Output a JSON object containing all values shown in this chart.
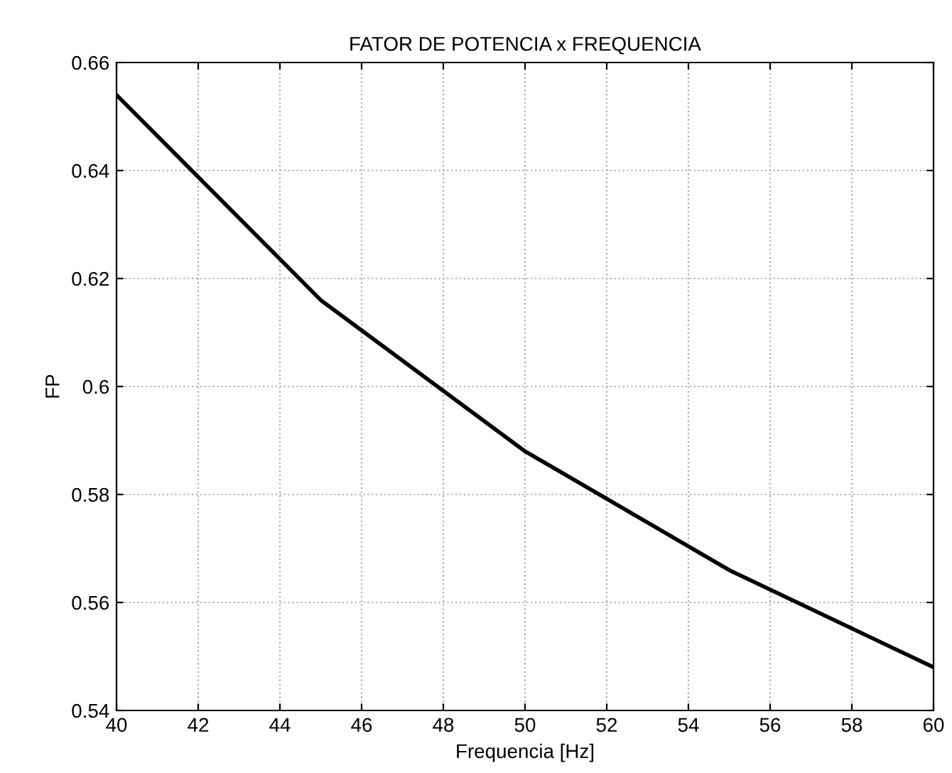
{
  "chart_data": {
    "type": "line",
    "title": "FATOR DE POTENCIA x FREQUENCIA",
    "xlabel": "Frequencia [Hz]",
    "ylabel": "FP",
    "x": [
      40,
      45,
      50,
      55,
      60
    ],
    "series": [
      {
        "color": "#000000",
        "values": [
          0.654,
          0.616,
          0.588,
          0.566,
          0.548
        ]
      }
    ],
    "xlim": [
      40,
      60
    ],
    "xticks": [
      40,
      42,
      44,
      46,
      48,
      50,
      52,
      54,
      56,
      58,
      60
    ],
    "ylim": [
      0.54,
      0.66
    ],
    "yticks": [
      0.54,
      0.56,
      0.58,
      0.6,
      0.62,
      0.64,
      0.66
    ],
    "grid": true,
    "legend": false
  }
}
